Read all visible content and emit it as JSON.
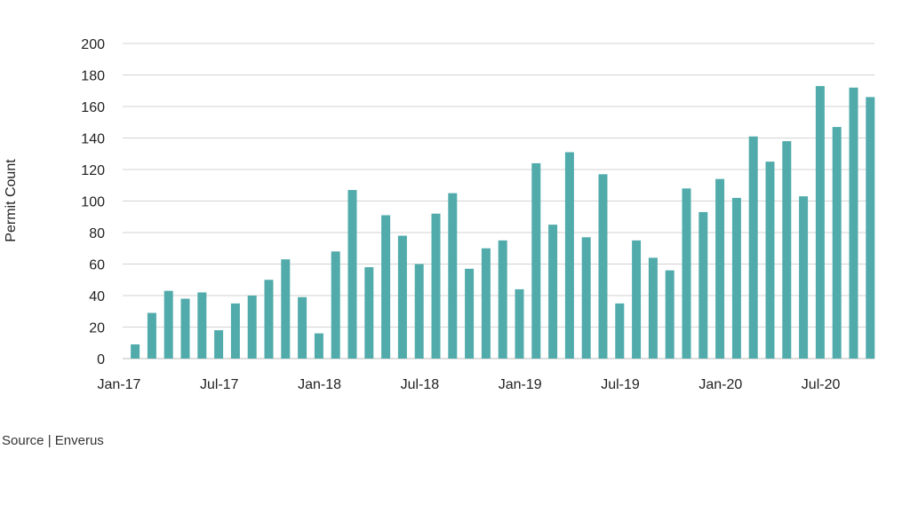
{
  "chart_data": {
    "type": "bar",
    "title": "",
    "xlabel": "",
    "ylabel": "Permit Count",
    "ylim": [
      0,
      200
    ],
    "yticks": [
      0,
      20,
      40,
      60,
      80,
      100,
      120,
      140,
      160,
      180,
      200
    ],
    "grid": true,
    "bar_color": "#52abab",
    "x_tick_labels": [
      "Jan-17",
      "Jul-17",
      "Jan-18",
      "Jul-18",
      "Jan-19",
      "Jul-19",
      "Jan-20",
      "Jul-20"
    ],
    "categories": [
      "Jan-17",
      "Feb-17",
      "Mar-17",
      "Apr-17",
      "May-17",
      "Jun-17",
      "Jul-17",
      "Aug-17",
      "Sep-17",
      "Oct-17",
      "Nov-17",
      "Dec-17",
      "Jan-18",
      "Feb-18",
      "Mar-18",
      "Apr-18",
      "May-18",
      "Jun-18",
      "Jul-18",
      "Aug-18",
      "Sep-18",
      "Oct-18",
      "Nov-18",
      "Dec-18",
      "Jan-19",
      "Feb-19",
      "Mar-19",
      "Apr-19",
      "May-19",
      "Jun-19",
      "Jul-19",
      "Aug-19",
      "Sep-19",
      "Oct-19",
      "Nov-19",
      "Dec-19",
      "Jan-20",
      "Feb-20",
      "Mar-20",
      "Apr-20",
      "May-20",
      "Jun-20",
      "Jul-20",
      "Aug-20",
      "Sep-20"
    ],
    "values": [
      9,
      29,
      43,
      38,
      42,
      18,
      35,
      40,
      50,
      63,
      39,
      16,
      68,
      107,
      58,
      91,
      78,
      60,
      92,
      105,
      57,
      70,
      75,
      44,
      124,
      85,
      131,
      77,
      117,
      35,
      75,
      64,
      56,
      108,
      93,
      114,
      102,
      141,
      125,
      138,
      103,
      173,
      147,
      172,
      166
    ]
  },
  "source": "Source | Enverus"
}
